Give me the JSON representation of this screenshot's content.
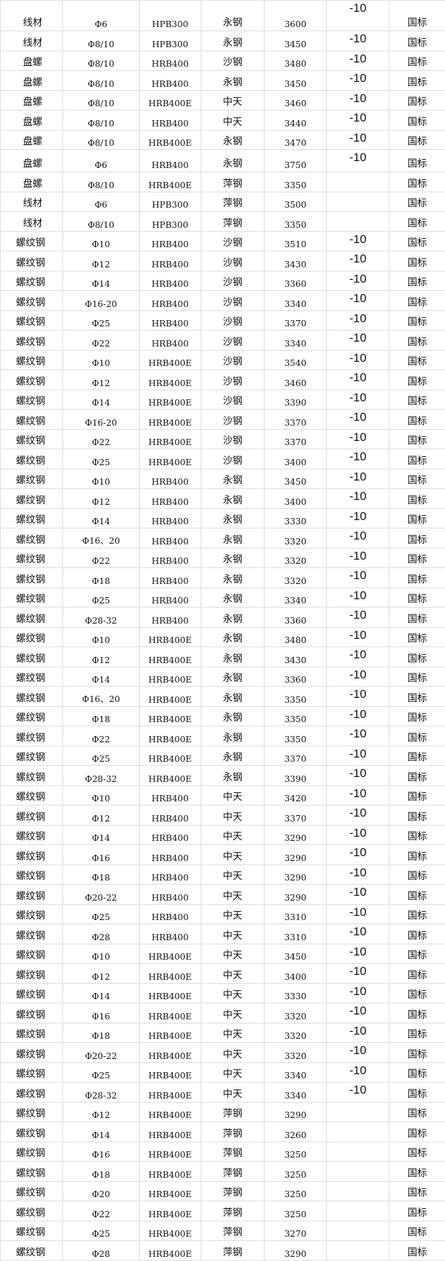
{
  "table": {
    "rows": [
      [
        "线材",
        "Φ6",
        "HPB300",
        "永钢",
        "3600",
        "-10",
        "国标"
      ],
      [
        "线材",
        "Φ8/10",
        "HPB300",
        "永钢",
        "3450",
        "-10",
        "国标"
      ],
      [
        "盘螺",
        "Φ8/10",
        "HRB400",
        "沙钢",
        "3480",
        "-10",
        "国标"
      ],
      [
        "盘螺",
        "Φ8/10",
        "HRB400",
        "永钢",
        "3450",
        "-10",
        "国标"
      ],
      [
        "盘螺",
        "Φ8/10",
        "HRB400E",
        "中天",
        "3460",
        "-10",
        "国标"
      ],
      [
        "盘螺",
        "Φ8/10",
        "HRB400",
        "中天",
        "3440",
        "-10",
        "国标"
      ],
      [
        "盘螺",
        "Φ8/10",
        "HRB400E",
        "永钢",
        "3470",
        "-10",
        "国标"
      ],
      [
        "盘螺",
        "Φ6",
        "HRB400",
        "永钢",
        "3750",
        "-10",
        "国标"
      ],
      [
        "盘螺",
        "Φ8/10",
        "HRB400E",
        "萍钢",
        "3350",
        "",
        "国标"
      ],
      [
        "线材",
        "Φ6",
        "HPB300",
        "萍钢",
        "3500",
        "",
        "国标"
      ],
      [
        "线材",
        "Φ8/10",
        "HPB300",
        "萍钢",
        "3350",
        "",
        "国标"
      ],
      [
        "螺纹钢",
        "Φ10",
        "HRB400",
        "沙钢",
        "3510",
        "-10",
        "国标"
      ],
      [
        "螺纹钢",
        "Φ12",
        "HRB400",
        "沙钢",
        "3430",
        "-10",
        "国标"
      ],
      [
        "螺纹钢",
        "Φ14",
        "HRB400",
        "沙钢",
        "3360",
        "-10",
        "国标"
      ],
      [
        "螺纹钢",
        "Φ16-20",
        "HRB400",
        "沙钢",
        "3340",
        "-10",
        "国标"
      ],
      [
        "螺纹钢",
        "Φ25",
        "HRB400",
        "沙钢",
        "3370",
        "-10",
        "国标"
      ],
      [
        "螺纹钢",
        "Φ22",
        "HRB400",
        "沙钢",
        "3340",
        "-10",
        "国标"
      ],
      [
        "螺纹钢",
        "Φ10",
        "HRB400E",
        "沙钢",
        "3540",
        "-10",
        "国标"
      ],
      [
        "螺纹钢",
        "Φ12",
        "HRB400E",
        "沙钢",
        "3460",
        "-10",
        "国标"
      ],
      [
        "螺纹钢",
        "Φ14",
        "HRB400E",
        "沙钢",
        "3390",
        "-10",
        "国标"
      ],
      [
        "螺纹钢",
        "Φ16-20",
        "HRB400E",
        "沙钢",
        "3370",
        "-10",
        "国标"
      ],
      [
        "螺纹钢",
        "Φ22",
        "HRB400E",
        "沙钢",
        "3370",
        "-10",
        "国标"
      ],
      [
        "螺纹钢",
        "Φ25",
        "HRB400E",
        "沙钢",
        "3400",
        "-10",
        "国标"
      ],
      [
        "螺纹钢",
        "Φ10",
        "HRB400",
        "永钢",
        "3450",
        "-10",
        "国标"
      ],
      [
        "螺纹钢",
        "Φ12",
        "HRB400",
        "永钢",
        "3400",
        "-10",
        "国标"
      ],
      [
        "螺纹钢",
        "Φ14",
        "HRB400",
        "永钢",
        "3330",
        "-10",
        "国标"
      ],
      [
        "螺纹钢",
        "Φ16、20",
        "HRB400",
        "永钢",
        "3320",
        "-10",
        "国标"
      ],
      [
        "螺纹钢",
        "Φ22",
        "HRB400",
        "永钢",
        "3320",
        "-10",
        "国标"
      ],
      [
        "螺纹钢",
        "Φ18",
        "HRB400",
        "永钢",
        "3320",
        "-10",
        "国标"
      ],
      [
        "螺纹钢",
        "Φ25",
        "HRB400",
        "永钢",
        "3340",
        "-10",
        "国标"
      ],
      [
        "螺纹钢",
        "Φ28-32",
        "HRB400",
        "永钢",
        "3360",
        "-10",
        "国标"
      ],
      [
        "螺纹钢",
        "Φ10",
        "HRB400E",
        "永钢",
        "3480",
        "-10",
        "国标"
      ],
      [
        "螺纹钢",
        "Φ12",
        "HRB400E",
        "永钢",
        "3430",
        "-10",
        "国标"
      ],
      [
        "螺纹钢",
        "Φ14",
        "HRB400E",
        "永钢",
        "3360",
        "-10",
        "国标"
      ],
      [
        "螺纹钢",
        "Φ16、20",
        "HRB400E",
        "永钢",
        "3350",
        "-10",
        "国标"
      ],
      [
        "螺纹钢",
        "Φ18",
        "HRB400E",
        "永钢",
        "3350",
        "-10",
        "国标"
      ],
      [
        "螺纹钢",
        "Φ22",
        "HRB400E",
        "永钢",
        "3350",
        "-10",
        "国标"
      ],
      [
        "螺纹钢",
        "Φ25",
        "HRB400E",
        "永钢",
        "3370",
        "-10",
        "国标"
      ],
      [
        "螺纹钢",
        "Φ28-32",
        "HRB400E",
        "永钢",
        "3390",
        "-10",
        "国标"
      ],
      [
        "螺纹钢",
        "Φ10",
        "HRB400",
        "中天",
        "3420",
        "-10",
        "国标"
      ],
      [
        "螺纹钢",
        "Φ12",
        "HRB400",
        "中天",
        "3370",
        "-10",
        "国标"
      ],
      [
        "螺纹钢",
        "Φ14",
        "HRB400",
        "中天",
        "3290",
        "-10",
        "国标"
      ],
      [
        "螺纹钢",
        "Φ16",
        "HRB400",
        "中天",
        "3290",
        "-10",
        "国标"
      ],
      [
        "螺纹钢",
        "Φ18",
        "HRB400",
        "中天",
        "3290",
        "-10",
        "国标"
      ],
      [
        "螺纹钢",
        "Φ20-22",
        "HRB400",
        "中天",
        "3290",
        "-10",
        "国标"
      ],
      [
        "螺纹钢",
        "Φ25",
        "HRB400",
        "中天",
        "3310",
        "-10",
        "国标"
      ],
      [
        "螺纹钢",
        "Φ28",
        "HRB400",
        "中天",
        "3310",
        "-10",
        "国标"
      ],
      [
        "螺纹钢",
        "Φ10",
        "HRB400E",
        "中天",
        "3450",
        "-10",
        "国标"
      ],
      [
        "螺纹钢",
        "Φ12",
        "HRB400E",
        "中天",
        "3400",
        "-10",
        "国标"
      ],
      [
        "螺纹钢",
        "Φ14",
        "HRB400E",
        "中天",
        "3330",
        "-10",
        "国标"
      ],
      [
        "螺纹钢",
        "Φ16",
        "HRB400E",
        "中天",
        "3320",
        "-10",
        "国标"
      ],
      [
        "螺纹钢",
        "Φ18",
        "HRB400E",
        "中天",
        "3320",
        "-10",
        "国标"
      ],
      [
        "螺纹钢",
        "Φ20-22",
        "HRB400E",
        "中天",
        "3320",
        "-10",
        "国标"
      ],
      [
        "螺纹钢",
        "Φ25",
        "HRB400E",
        "中天",
        "3340",
        "-10",
        "国标"
      ],
      [
        "螺纹钢",
        "Φ28-32",
        "HRB400E",
        "中天",
        "3340",
        "-10",
        "国标"
      ],
      [
        "螺纹钢",
        "Φ12",
        "HRB400E",
        "萍钢",
        "3290",
        "",
        "国标"
      ],
      [
        "螺纹钢",
        "Φ14",
        "HRB400E",
        "萍钢",
        "3260",
        "",
        "国标"
      ],
      [
        "螺纹钢",
        "Φ16",
        "HRB400E",
        "萍钢",
        "3250",
        "",
        "国标"
      ],
      [
        "螺纹钢",
        "Φ18",
        "HRB400E",
        "萍钢",
        "3250",
        "",
        "国标"
      ],
      [
        "螺纹钢",
        "Φ20",
        "HRB400E",
        "萍钢",
        "3250",
        "",
        "国标"
      ],
      [
        "螺纹钢",
        "Φ22",
        "HRB400E",
        "萍钢",
        "3250",
        "",
        "国标"
      ],
      [
        "螺纹钢",
        "Φ25",
        "HRB400E",
        "萍钢",
        "3270",
        "",
        "国标"
      ],
      [
        "螺纹钢",
        "Φ28",
        "HRB400E",
        "萍钢",
        "3290",
        "",
        "国标"
      ]
    ]
  }
}
